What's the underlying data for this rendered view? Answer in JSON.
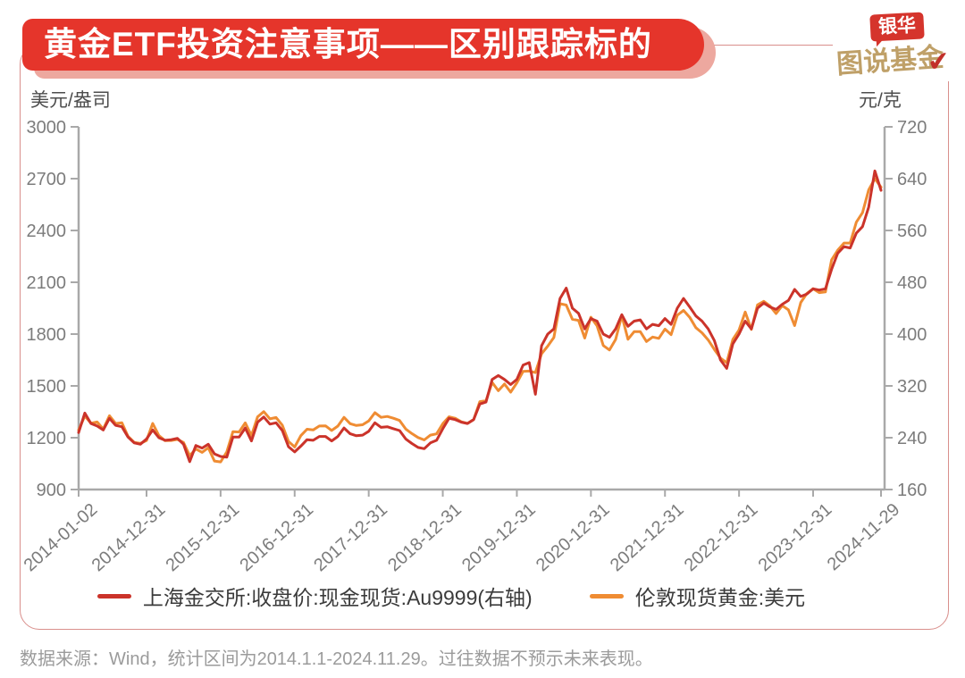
{
  "header": {
    "title": "黄金ETF投资注意事项——区别跟踪标的",
    "banner_color": "#e5352b",
    "banner_shadow_color": "#eda89f",
    "logo": {
      "tag": "银华",
      "tag_bg": "#d5342c",
      "name": "图说基金",
      "name_color": "#bfa068",
      "check_glyph": "✔",
      "check_color": "#c2302a"
    }
  },
  "frame": {
    "border_color": "#d98f8c"
  },
  "chart_data": {
    "type": "line",
    "title": "",
    "grid": false,
    "legend_position": "bottom",
    "axis_color": "#a9a9a9",
    "left_axis": {
      "label": "美元/盎司",
      "min": 900,
      "max": 3000,
      "ticks": [
        3000,
        2700,
        2400,
        2100,
        1800,
        1500,
        1200,
        900
      ]
    },
    "right_axis": {
      "label": "元/克",
      "min": 160,
      "max": 720,
      "ticks": [
        720,
        640,
        560,
        480,
        400,
        320,
        240,
        160
      ]
    },
    "x_ticks": {
      "labels": [
        "2014-01-02",
        "2014-12-31",
        "2015-12-31",
        "2016-12-31",
        "2017-12-31",
        "2018-12-31",
        "2019-12-31",
        "2020-12-31",
        "2021-12-31",
        "2022-12-31",
        "2023-12-31",
        "2024-11-29"
      ],
      "month_indices": [
        0,
        11,
        23,
        35,
        47,
        59,
        71,
        83,
        95,
        107,
        119,
        130
      ]
    },
    "x_range": [
      "2014-01-02",
      "2024-11-29"
    ],
    "sampling": "monthly",
    "series": [
      {
        "name": "上海金交所:收盘价:现金现货:Au9999(右轴)",
        "color": "#cb332a",
        "axis": "right",
        "unit": "元/克",
        "values": [
          248,
          278,
          262,
          258,
          252,
          270,
          259,
          257,
          241,
          232,
          230,
          238,
          252,
          240,
          236,
          237,
          239,
          230,
          203,
          228,
          224,
          230,
          215,
          211,
          210,
          241,
          241,
          255,
          235,
          264,
          272,
          261,
          263,
          251,
          226,
          218,
          227,
          237,
          236,
          242,
          242,
          235,
          242,
          255,
          246,
          243,
          244,
          250,
          263,
          256,
          257,
          254,
          251,
          238,
          231,
          225,
          223,
          232,
          236,
          254,
          270,
          268,
          264,
          262,
          268,
          292,
          295,
          330,
          336,
          330,
          322,
          330,
          352,
          356,
          307,
          382,
          400,
          408,
          455,
          471,
          440,
          432,
          408,
          424,
          420,
          400,
          395,
          408,
          430,
          412,
          420,
          422,
          408,
          415,
          413,
          424,
          415,
          440,
          455,
          442,
          428,
          420,
          408,
          390,
          360,
          347,
          385,
          400,
          420,
          408,
          440,
          448,
          442,
          438,
          446,
          452,
          469,
          458,
          462,
          470,
          468,
          470,
          500,
          525,
          535,
          533,
          556,
          566,
          596,
          652,
          622
        ]
      },
      {
        "name": "伦敦现货黄金:美元",
        "color": "#ef8c33",
        "axis": "left",
        "unit": "美元/盎司",
        "values": [
          1244,
          1326,
          1284,
          1291,
          1250,
          1327,
          1282,
          1287,
          1208,
          1173,
          1167,
          1184,
          1283,
          1213,
          1183,
          1184,
          1190,
          1172,
          1096,
          1135,
          1115,
          1142,
          1065,
          1060,
          1118,
          1235,
          1233,
          1286,
          1212,
          1321,
          1351,
          1309,
          1317,
          1272,
          1178,
          1146,
          1212,
          1249,
          1245,
          1268,
          1269,
          1242,
          1267,
          1318,
          1281,
          1271,
          1275,
          1297,
          1345,
          1318,
          1323,
          1313,
          1300,
          1250,
          1224,
          1201,
          1187,
          1215,
          1222,
          1281,
          1321,
          1313,
          1292,
          1283,
          1305,
          1409,
          1414,
          1520,
          1472,
          1511,
          1464,
          1517,
          1584,
          1586,
          1577,
          1686,
          1730,
          1781,
          1976,
          1968,
          1886,
          1879,
          1777,
          1898,
          1848,
          1734,
          1708,
          1769,
          1907,
          1770,
          1814,
          1814,
          1757,
          1783,
          1775,
          1829,
          1797,
          1909,
          1937,
          1897,
          1837,
          1807,
          1766,
          1711,
          1661,
          1634,
          1769,
          1824,
          1928,
          1827,
          1969,
          1990,
          1963,
          1919,
          1965,
          1940,
          1849,
          1983,
          2036,
          2063,
          2040,
          2044,
          2230,
          2286,
          2327,
          2327,
          2448,
          2503,
          2635,
          2700,
          2651
        ]
      }
    ]
  },
  "footer": {
    "text": "数据来源：Wind，统计区间为2014.1.1-2024.11.29。过往数据不预示未来表现。"
  }
}
